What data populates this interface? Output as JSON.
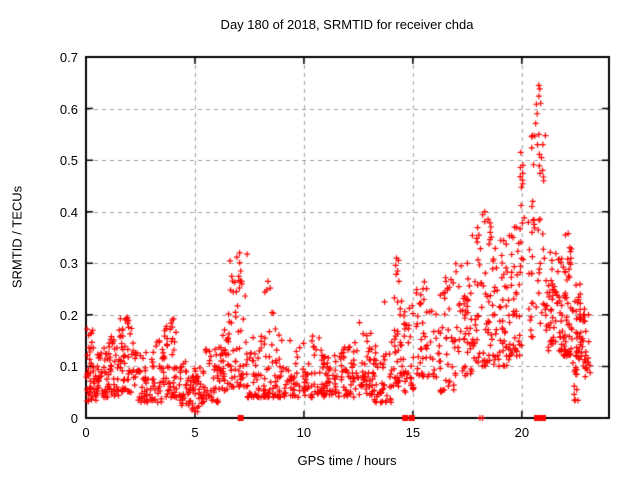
{
  "chart_data": {
    "type": "scatter",
    "title": "Day 180 of 2018, SRMTID for receiver chda",
    "xlabel": "GPS time / hours",
    "ylabel": "SRMTID / TECUs",
    "xlim": [
      0,
      24
    ],
    "ylim": [
      0,
      0.7
    ],
    "xticks": [
      0,
      5,
      10,
      15,
      20
    ],
    "yticks": [
      0,
      0.1,
      0.2,
      0.3,
      0.4,
      0.5,
      0.6,
      0.7
    ],
    "ytick_labels": [
      "0",
      "0.1",
      "0.2",
      "0.3",
      "0.4",
      "0.5",
      "0.6",
      "0.7"
    ],
    "xtick_labels": [
      "0",
      "5",
      "10",
      "15",
      "20"
    ],
    "grid": true,
    "legend": "none",
    "colors": {
      "marker": "#ff0000",
      "grid": "#a0a0a0",
      "axis": "#000000",
      "background": "#ffffff"
    },
    "series": [
      {
        "name": "SRMTID scatter",
        "marker": "plus",
        "color": "#ff0000",
        "clusters_format": [
          "x_start_h",
          "x_end_h",
          "n_points",
          "y_min",
          "y_typical",
          "y_max"
        ],
        "clusters": [
          [
            0.0,
            0.5,
            45,
            0.03,
            0.08,
            0.175
          ],
          [
            0.5,
            1.0,
            40,
            0.04,
            0.08,
            0.14
          ],
          [
            1.0,
            1.5,
            40,
            0.04,
            0.09,
            0.16
          ],
          [
            1.5,
            2.2,
            55,
            0.05,
            0.105,
            0.2
          ],
          [
            2.2,
            2.8,
            38,
            0.03,
            0.07,
            0.13
          ],
          [
            2.8,
            3.6,
            45,
            0.03,
            0.07,
            0.15
          ],
          [
            3.6,
            4.3,
            45,
            0.04,
            0.085,
            0.195
          ],
          [
            4.3,
            4.8,
            32,
            0.02,
            0.06,
            0.11
          ],
          [
            4.8,
            5.4,
            40,
            0.012,
            0.05,
            0.1
          ],
          [
            5.4,
            6.2,
            45,
            0.03,
            0.07,
            0.15
          ],
          [
            6.2,
            6.6,
            30,
            0.05,
            0.1,
            0.21
          ],
          [
            6.6,
            7.4,
            55,
            0.06,
            0.125,
            0.32
          ],
          [
            7.4,
            8.2,
            45,
            0.04,
            0.08,
            0.18
          ],
          [
            8.2,
            8.7,
            32,
            0.04,
            0.085,
            0.26
          ],
          [
            8.7,
            9.6,
            45,
            0.04,
            0.08,
            0.17
          ],
          [
            9.6,
            10.8,
            55,
            0.04,
            0.08,
            0.16
          ],
          [
            10.8,
            11.6,
            48,
            0.04,
            0.075,
            0.13
          ],
          [
            11.6,
            12.3,
            42,
            0.04,
            0.08,
            0.14
          ],
          [
            12.3,
            13.2,
            50,
            0.045,
            0.09,
            0.17
          ],
          [
            13.2,
            14.0,
            42,
            0.03,
            0.07,
            0.14
          ],
          [
            14.0,
            14.5,
            40,
            0.06,
            0.13,
            0.31
          ],
          [
            14.5,
            15.1,
            35,
            0.05,
            0.11,
            0.22
          ],
          [
            15.1,
            16.0,
            45,
            0.08,
            0.14,
            0.27
          ],
          [
            16.0,
            16.9,
            45,
            0.05,
            0.13,
            0.27
          ],
          [
            16.9,
            17.7,
            50,
            0.08,
            0.16,
            0.3
          ],
          [
            17.7,
            18.6,
            60,
            0.1,
            0.2,
            0.4
          ],
          [
            18.6,
            19.4,
            55,
            0.1,
            0.19,
            0.35
          ],
          [
            19.4,
            20.0,
            45,
            0.12,
            0.2,
            0.38
          ],
          [
            19.9,
            20.15,
            12,
            0.3,
            0.4,
            0.52
          ],
          [
            20.3,
            21.1,
            45,
            0.15,
            0.3,
            0.55
          ],
          [
            20.6,
            20.9,
            8,
            0.45,
            0.55,
            0.65
          ],
          [
            21.1,
            21.8,
            55,
            0.13,
            0.22,
            0.33
          ],
          [
            21.8,
            22.3,
            60,
            0.12,
            0.2,
            0.36
          ],
          [
            22.3,
            22.7,
            32,
            0.08,
            0.16,
            0.26
          ],
          [
            22.6,
            23.15,
            40,
            0.08,
            0.15,
            0.25
          ],
          [
            22.4,
            22.6,
            4,
            0.03,
            0.045,
            0.07
          ]
        ],
        "notable_points": [
          [
            0.25,
            0.165
          ],
          [
            0.3,
            0.17
          ],
          [
            1.9,
            0.195
          ],
          [
            3.95,
            0.19
          ],
          [
            6.9,
            0.245
          ],
          [
            7.05,
            0.32
          ],
          [
            7.1,
            0.285
          ],
          [
            7.15,
            0.26
          ],
          [
            8.35,
            0.265
          ],
          [
            8.45,
            0.252
          ],
          [
            12.55,
            0.185
          ],
          [
            13.7,
            0.225
          ],
          [
            14.25,
            0.31
          ],
          [
            14.3,
            0.285
          ],
          [
            16.5,
            0.272
          ],
          [
            17.5,
            0.3
          ],
          [
            18.3,
            0.4
          ],
          [
            18.45,
            0.385
          ],
          [
            18.55,
            0.36
          ],
          [
            19.6,
            0.35
          ],
          [
            19.95,
            0.515
          ],
          [
            20.05,
            0.49
          ],
          [
            20.5,
            0.42
          ],
          [
            20.7,
            0.59
          ],
          [
            20.72,
            0.53
          ],
          [
            20.78,
            0.645
          ],
          [
            20.82,
            0.638
          ],
          [
            20.9,
            0.505
          ],
          [
            20.95,
            0.48
          ],
          [
            21.0,
            0.46
          ],
          [
            22.0,
            0.355
          ],
          [
            22.45,
            0.035
          ],
          [
            22.52,
            0.055
          ],
          [
            18.08,
            0.0
          ],
          [
            18.2,
            0.0
          ]
        ]
      },
      {
        "name": "baseline flags",
        "marker": "square",
        "color": "#ff0000",
        "points": [
          [
            7.1,
            0
          ],
          [
            14.65,
            0
          ],
          [
            14.95,
            0
          ],
          [
            20.7,
            0
          ],
          [
            20.97,
            0
          ]
        ]
      }
    ]
  }
}
